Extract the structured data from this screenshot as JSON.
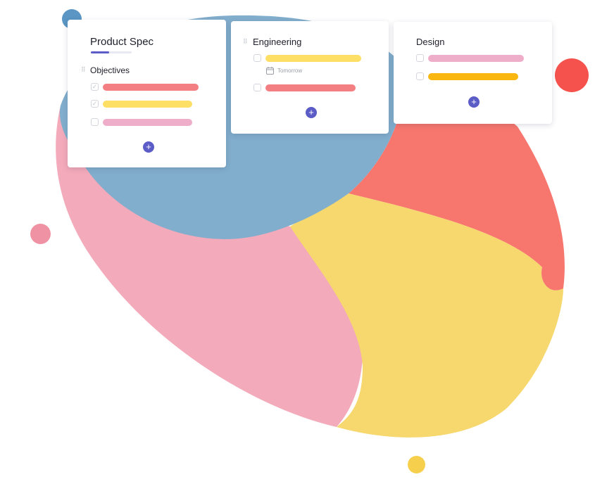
{
  "colors": {
    "blob_blue": "#82aecd",
    "blob_pink": "#f3aaba",
    "blob_red": "#f7766e",
    "blob_yellow": "#f6d86e",
    "dot_blue": "#5b96c4",
    "dot_red": "#f5524d",
    "dot_pink": "#ef92a4",
    "dot_yellow": "#f6d04d",
    "accent": "#5b5cc6",
    "bar_red": "#f47f83",
    "bar_yellow": "#fddf65",
    "bar_pink": "#eeadc9",
    "bar_orange": "#fab712"
  },
  "cards": {
    "product_spec": {
      "title": "Product Spec",
      "progress": 0.45,
      "section": "Objectives",
      "items": [
        {
          "checked": true,
          "color": "#f47f83"
        },
        {
          "checked": true,
          "color": "#fddf65"
        },
        {
          "checked": false,
          "color": "#eeadc9"
        }
      ],
      "add_label": "+"
    },
    "engineering": {
      "title": "Engineering",
      "items": [
        {
          "checked": false,
          "color": "#fddf65",
          "due": "Tomorrow",
          "due_icon": "calendar-icon"
        },
        {
          "checked": false,
          "color": "#f47f83"
        }
      ],
      "add_label": "+"
    },
    "design": {
      "title": "Design",
      "items": [
        {
          "checked": false,
          "color": "#eeadc9"
        },
        {
          "checked": false,
          "color": "#fab712"
        }
      ],
      "add_label": "+"
    }
  }
}
